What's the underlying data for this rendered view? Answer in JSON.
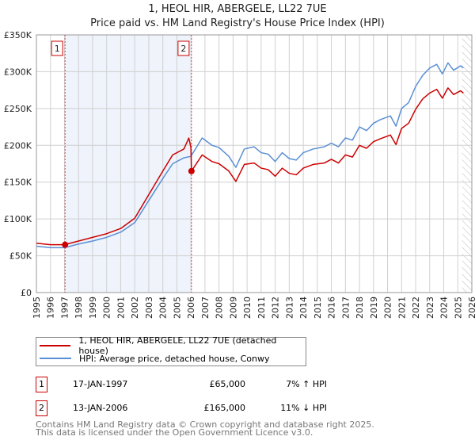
{
  "chart_data": {
    "type": "line",
    "title": "1, HEOL HIR, ABERGELE, LL22 7UE",
    "subtitle": "Price paid vs. HM Land Registry's House Price Index (HPI)",
    "xlim": [
      1995,
      2026
    ],
    "ylim": [
      0,
      350000
    ],
    "yticks": [
      {
        "v": 0,
        "label": "£0"
      },
      {
        "v": 50000,
        "label": "£50K"
      },
      {
        "v": 100000,
        "label": "£100K"
      },
      {
        "v": 150000,
        "label": "£150K"
      },
      {
        "v": 200000,
        "label": "£200K"
      },
      {
        "v": 250000,
        "label": "£250K"
      },
      {
        "v": 300000,
        "label": "£300K"
      },
      {
        "v": 350000,
        "label": "£350K"
      }
    ],
    "xticks": [
      "1995",
      "1996",
      "1997",
      "1998",
      "1999",
      "2000",
      "2001",
      "2002",
      "2003",
      "2004",
      "2005",
      "2006",
      "2007",
      "2008",
      "2009",
      "2010",
      "2011",
      "2012",
      "2013",
      "2014",
      "2015",
      "2016",
      "2017",
      "2018",
      "2019",
      "2020",
      "2021",
      "2022",
      "2023",
      "2024",
      "2025",
      "2026"
    ],
    "grid": true,
    "shaded_range": [
      1997.04,
      2006.04
    ],
    "forecast_hatch_from": 2025.3,
    "series": [
      {
        "name": "1, HEOL HIR, ABERGELE, LL22 7UE (detached house)",
        "color": "#cc0000",
        "points": [
          [
            1995,
            67
          ],
          [
            1996,
            65
          ],
          [
            1997,
            65
          ],
          [
            1998,
            70
          ],
          [
            1999,
            75
          ],
          [
            2000,
            80
          ],
          [
            2001,
            87
          ],
          [
            2002,
            101
          ],
          [
            2003,
            133
          ],
          [
            2004,
            165
          ],
          [
            2004.7,
            187
          ],
          [
            2005.5,
            195
          ],
          [
            2005.85,
            210
          ],
          [
            2006.0,
            197
          ],
          [
            2006.04,
            165
          ],
          [
            2006.8,
            187
          ],
          [
            2007.5,
            178
          ],
          [
            2008,
            175
          ],
          [
            2008.7,
            165
          ],
          [
            2009.2,
            151
          ],
          [
            2009.8,
            174
          ],
          [
            2010.5,
            176
          ],
          [
            2011,
            169
          ],
          [
            2011.5,
            167
          ],
          [
            2012,
            158
          ],
          [
            2012.5,
            169
          ],
          [
            2013,
            162
          ],
          [
            2013.5,
            160
          ],
          [
            2014,
            169
          ],
          [
            2014.7,
            174
          ],
          [
            2015.5,
            176
          ],
          [
            2016,
            181
          ],
          [
            2016.5,
            176
          ],
          [
            2017,
            187
          ],
          [
            2017.5,
            184
          ],
          [
            2018,
            200
          ],
          [
            2018.5,
            196
          ],
          [
            2019,
            205
          ],
          [
            2019.5,
            209
          ],
          [
            2020.2,
            214
          ],
          [
            2020.6,
            201
          ],
          [
            2021,
            223
          ],
          [
            2021.5,
            230
          ],
          [
            2022,
            249
          ],
          [
            2022.5,
            263
          ],
          [
            2023,
            271
          ],
          [
            2023.5,
            276
          ],
          [
            2023.9,
            264
          ],
          [
            2024.3,
            278
          ],
          [
            2024.7,
            269
          ],
          [
            2025.2,
            274
          ],
          [
            2025.4,
            271
          ]
        ]
      },
      {
        "name": "HPI: Average price, detached house, Conwy",
        "color": "#5b8fd4",
        "points": [
          [
            1995,
            63
          ],
          [
            1996,
            61
          ],
          [
            1997,
            61
          ],
          [
            1998,
            66
          ],
          [
            1999,
            70
          ],
          [
            2000,
            75
          ],
          [
            2001,
            82
          ],
          [
            2002,
            95
          ],
          [
            2003,
            125
          ],
          [
            2004,
            155
          ],
          [
            2004.7,
            175
          ],
          [
            2005.5,
            183
          ],
          [
            2006.0,
            185
          ],
          [
            2006.8,
            210
          ],
          [
            2007.5,
            200
          ],
          [
            2008,
            197
          ],
          [
            2008.7,
            185
          ],
          [
            2009.2,
            170
          ],
          [
            2009.8,
            195
          ],
          [
            2010.5,
            198
          ],
          [
            2011,
            190
          ],
          [
            2011.5,
            188
          ],
          [
            2012,
            178
          ],
          [
            2012.5,
            190
          ],
          [
            2013,
            182
          ],
          [
            2013.5,
            180
          ],
          [
            2014,
            190
          ],
          [
            2014.7,
            195
          ],
          [
            2015.5,
            198
          ],
          [
            2016,
            203
          ],
          [
            2016.5,
            198
          ],
          [
            2017,
            210
          ],
          [
            2017.5,
            207
          ],
          [
            2018,
            225
          ],
          [
            2018.5,
            220
          ],
          [
            2019,
            230
          ],
          [
            2019.5,
            235
          ],
          [
            2020.2,
            240
          ],
          [
            2020.6,
            226
          ],
          [
            2021,
            250
          ],
          [
            2021.5,
            258
          ],
          [
            2022,
            280
          ],
          [
            2022.5,
            295
          ],
          [
            2023,
            305
          ],
          [
            2023.5,
            310
          ],
          [
            2023.9,
            297
          ],
          [
            2024.3,
            312
          ],
          [
            2024.7,
            302
          ],
          [
            2025.2,
            308
          ],
          [
            2025.4,
            305
          ]
        ]
      }
    ],
    "value_unit": "thousands GBP",
    "annotations": [
      {
        "label": "1",
        "x": 1997.04,
        "y": 65000
      },
      {
        "label": "2",
        "x": 2006.04,
        "y": 165000
      }
    ]
  },
  "transactions": [
    {
      "num": "1",
      "date": "17-JAN-1997",
      "price": "£65,000",
      "hpi": "7% ↑ HPI"
    },
    {
      "num": "2",
      "date": "13-JAN-2006",
      "price": "£165,000",
      "hpi": "11% ↓ HPI"
    }
  ],
  "footer": [
    "Contains HM Land Registry data © Crown copyright and database right 2025.",
    "This data is licensed under the Open Government Licence v3.0."
  ]
}
